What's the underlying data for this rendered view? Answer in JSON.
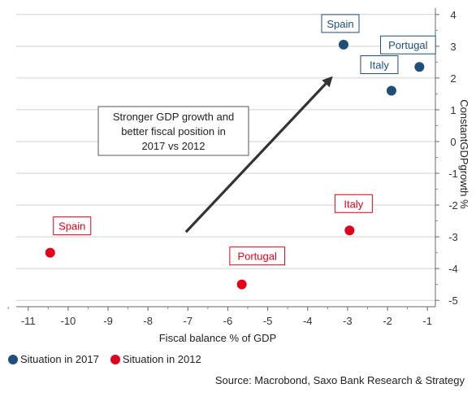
{
  "chart_data": {
    "type": "scatter",
    "title": "",
    "xlabel": "Fiscal balance % of GDP",
    "ylabel": "ConstantGDPgrowth %",
    "xlim": [
      -11.3,
      -0.8
    ],
    "ylim": [
      -5.2,
      4.2
    ],
    "x_ticks": [
      -11,
      -10,
      -9,
      -8,
      -7,
      -6,
      -5,
      -4,
      -3,
      -2,
      -1
    ],
    "y_ticks": [
      4,
      3,
      2,
      1,
      0,
      -1,
      -2,
      -3,
      -4,
      -5
    ],
    "grid": "horizontal",
    "y_axis_position": "right",
    "legend_position": "bottom-left",
    "series": [
      {
        "name": "Situation in 2017",
        "color": "#1f4e79",
        "points": [
          {
            "label": "Spain",
            "x": -3.1,
            "y": 3.05
          },
          {
            "label": "Portugal",
            "x": -1.2,
            "y": 2.35
          },
          {
            "label": "Italy",
            "x": -1.9,
            "y": 1.6
          }
        ]
      },
      {
        "name": "Situation in 2012",
        "color": "#e3001b",
        "points": [
          {
            "label": "Spain",
            "x": -10.45,
            "y": -3.5
          },
          {
            "label": "Portugal",
            "x": -5.65,
            "y": -4.5
          },
          {
            "label": "Italy",
            "x": -2.95,
            "y": -2.8
          }
        ]
      }
    ],
    "annotation": {
      "lines": [
        "Stronger GDP growth and",
        "better fiscal position in",
        "2017 vs 2012"
      ],
      "arrow_from": {
        "x": -7.05,
        "y": -2.85
      },
      "arrow_to": {
        "x": -3.45,
        "y": 1.95
      }
    }
  },
  "legend": {
    "items": [
      {
        "label": "Situation in 2017",
        "color": "#1f4e79"
      },
      {
        "label": "Situation in 2012",
        "color": "#e3001b"
      }
    ]
  },
  "source": "Source: Macrobond, Saxo Bank Research & Strategy"
}
